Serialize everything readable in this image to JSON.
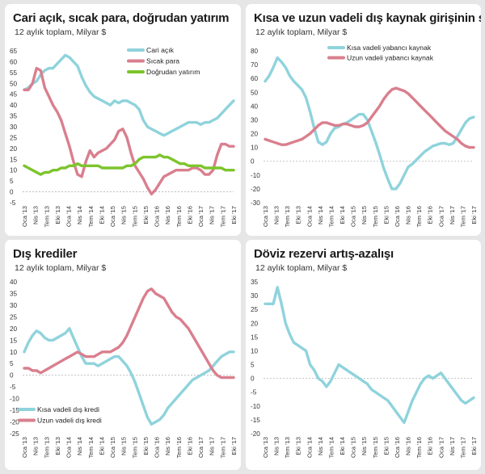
{
  "x_ticks": [
    "Oca '13",
    "Nis '13",
    "Tem '13",
    "Eki '13",
    "Oca '14",
    "Nis '14",
    "Tem '14",
    "Eki '14",
    "Oca '15",
    "Nis '15",
    "Tem '15",
    "Eki '15",
    "Oca '16",
    "Nis '16",
    "Tem '16",
    "Eki '16",
    "Oca '17",
    "Nis '17",
    "Tem '17",
    "Eki '17"
  ],
  "chart_data": [
    {
      "type": "line",
      "title": "Cari açık, sıcak para, doğrudan yatırım",
      "subtitle": "12 aylık toplam, Milyar $",
      "ylim": [
        -5,
        65
      ],
      "yticks": [
        -5,
        0,
        5,
        10,
        15,
        20,
        25,
        30,
        35,
        40,
        45,
        50,
        55,
        60,
        65
      ],
      "series": [
        {
          "name": "Cari açık",
          "color": "#8fd3dc",
          "values": [
            47,
            48,
            50,
            51,
            54,
            56,
            57,
            57,
            59,
            61,
            63,
            62,
            60,
            58,
            53,
            49,
            46,
            44,
            43,
            42,
            41,
            40,
            42,
            41,
            42,
            42,
            41,
            40,
            38,
            33,
            30,
            29,
            28,
            27,
            26,
            27,
            28,
            29,
            30,
            31,
            32,
            32,
            32,
            31,
            32,
            32,
            33,
            34,
            36,
            38,
            40,
            42
          ]
        },
        {
          "name": "Sıcak para",
          "color": "#d97f8e",
          "values": [
            47,
            47,
            50,
            57,
            56,
            48,
            44,
            40,
            37,
            33,
            27,
            21,
            14,
            8,
            7,
            14,
            19,
            16,
            18,
            19,
            20,
            22,
            24,
            28,
            29,
            25,
            18,
            12,
            9,
            6,
            2,
            -1,
            1,
            4,
            7,
            8,
            9,
            10,
            10,
            10,
            10,
            11,
            11,
            10,
            8,
            8,
            10,
            17,
            22,
            22,
            21,
            21
          ]
        },
        {
          "name": "Doğrudan yatırım",
          "color": "#7dc42d",
          "values": [
            12,
            11,
            10,
            9,
            8,
            9,
            9,
            10,
            10,
            11,
            11,
            12,
            12,
            13,
            12,
            12,
            12,
            12,
            12,
            11,
            11,
            11,
            11,
            11,
            11,
            12,
            12,
            13,
            15,
            16,
            16,
            16,
            16,
            17,
            16,
            16,
            15,
            14,
            13,
            13,
            12,
            12,
            12,
            12,
            11,
            11,
            11,
            11,
            11,
            10,
            10,
            10
          ]
        }
      ]
    },
    {
      "type": "line",
      "title": "Kısa ve uzun vadeli dış kaynak girişinin seyri",
      "subtitle": "12 aylık toplam, Milyar $",
      "ylim": [
        -30,
        80
      ],
      "yticks": [
        -30,
        -20,
        -10,
        0,
        10,
        20,
        30,
        40,
        50,
        60,
        70,
        80
      ],
      "series": [
        {
          "name": "Kısa vadeli yabancı kaynak",
          "color": "#8fd3dc",
          "values": [
            58,
            62,
            68,
            75,
            72,
            68,
            62,
            58,
            55,
            52,
            46,
            36,
            24,
            14,
            12,
            14,
            20,
            24,
            25,
            27,
            28,
            30,
            32,
            34,
            34,
            30,
            22,
            14,
            5,
            -5,
            -13,
            -20,
            -20,
            -16,
            -10,
            -4,
            -2,
            1,
            4,
            7,
            9,
            11,
            12,
            13,
            13,
            12,
            13,
            18,
            23,
            28,
            31,
            32
          ]
        },
        {
          "name": "Uzun vadeli yabancı kaynak",
          "color": "#d97f8e",
          "values": [
            16,
            15,
            14,
            13,
            12,
            12,
            13,
            14,
            15,
            16,
            18,
            20,
            23,
            26,
            28,
            28,
            27,
            26,
            26,
            27,
            27,
            26,
            25,
            25,
            26,
            28,
            32,
            36,
            40,
            45,
            49,
            52,
            53,
            52,
            51,
            49,
            46,
            43,
            40,
            37,
            34,
            31,
            28,
            25,
            22,
            20,
            18,
            16,
            13,
            11,
            10,
            10
          ]
        }
      ]
    },
    {
      "type": "line",
      "title": "Dış krediler",
      "subtitle": "12 aylık toplam, Milyar $",
      "ylim": [
        -25,
        40
      ],
      "yticks": [
        -25,
        -20,
        -15,
        -10,
        -5,
        0,
        5,
        10,
        15,
        20,
        25,
        30,
        35,
        40
      ],
      "series": [
        {
          "name": "Kısa vadeli dış kredi",
          "color": "#8fd3dc",
          "values": [
            10,
            14,
            17,
            19,
            18,
            16,
            15,
            15,
            16,
            17,
            18,
            20,
            16,
            12,
            8,
            5,
            5,
            5,
            4,
            5,
            6,
            7,
            8,
            8,
            6,
            4,
            1,
            -3,
            -8,
            -13,
            -18,
            -21,
            -20,
            -19,
            -17,
            -14,
            -12,
            -10,
            -8,
            -6,
            -4,
            -2,
            -1,
            0,
            1,
            2,
            4,
            6,
            8,
            9,
            10,
            10
          ]
        },
        {
          "name": "Uzun vadeli dış kredi",
          "color": "#d97f8e",
          "values": [
            3,
            3,
            2,
            2,
            1,
            2,
            3,
            4,
            5,
            6,
            7,
            8,
            9,
            10,
            9,
            8,
            8,
            8,
            9,
            10,
            10,
            10,
            11,
            12,
            14,
            17,
            21,
            25,
            29,
            33,
            36,
            37,
            35,
            34,
            33,
            30,
            27,
            25,
            24,
            22,
            20,
            17,
            14,
            11,
            8,
            5,
            2,
            0,
            -1,
            -1,
            -1,
            -1
          ]
        }
      ]
    },
    {
      "type": "line",
      "title": "Döviz rezervi artış-azalışı",
      "subtitle": "12 aylık toplam, Milyar $",
      "ylim": [
        -20,
        35
      ],
      "yticks": [
        -20,
        -15,
        -10,
        -5,
        0,
        5,
        10,
        15,
        20,
        25,
        30,
        35
      ],
      "series": [
        {
          "name": "",
          "color": "#8fd3dc",
          "values": [
            27,
            27,
            27,
            33,
            27,
            20,
            16,
            13,
            12,
            11,
            10,
            5,
            3,
            0,
            -1,
            -3,
            -1,
            2,
            5,
            4,
            3,
            2,
            1,
            0,
            -1,
            -2,
            -4,
            -5,
            -6,
            -7,
            -8,
            -10,
            -12,
            -14,
            -16,
            -12,
            -8,
            -5,
            -2,
            0,
            1,
            0,
            1,
            2,
            0,
            -2,
            -4,
            -6,
            -8,
            -9,
            -8,
            -7
          ]
        }
      ]
    }
  ]
}
